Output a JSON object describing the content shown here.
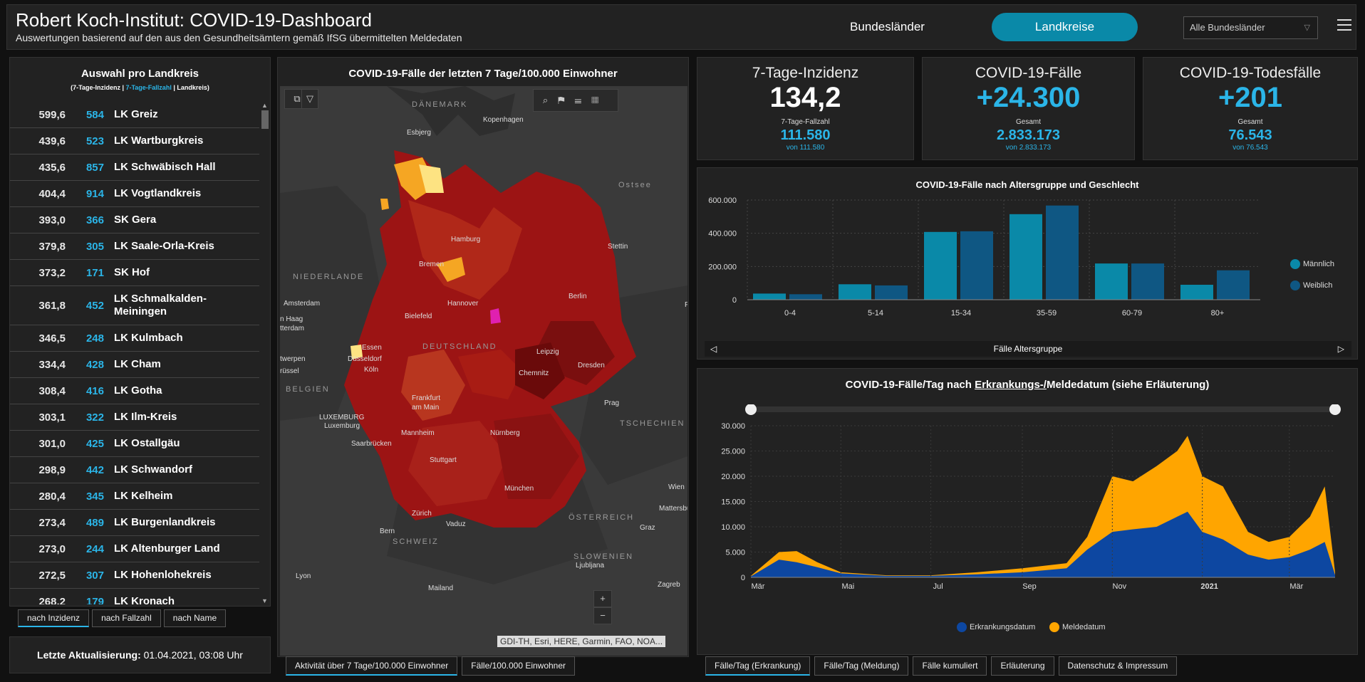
{
  "header": {
    "title": "Robert Koch-Institut: COVID-19-Dashboard",
    "subtitle": "Auswertungen basierend auf den aus den Gesundheitsämtern gemäß IfSG übermittelten Meldedaten",
    "tab_states": "Bundesländer",
    "tab_districts": "Landkreise",
    "region_select": "Alle Bundesländer"
  },
  "list": {
    "title": "Auswahl pro Landkreis",
    "sub_a": "(7-Tage-Inzidenz | ",
    "sub_b": "7-Tage-Fallzahl",
    "sub_c": " | Landkreis)",
    "rows": [
      {
        "inc": "599,6",
        "cnt": "584",
        "name": "LK Greiz"
      },
      {
        "inc": "439,6",
        "cnt": "523",
        "name": "LK Wartburgkreis"
      },
      {
        "inc": "435,6",
        "cnt": "857",
        "name": "LK Schwäbisch Hall"
      },
      {
        "inc": "404,4",
        "cnt": "914",
        "name": "LK Vogtlandkreis"
      },
      {
        "inc": "393,0",
        "cnt": "366",
        "name": "SK Gera"
      },
      {
        "inc": "379,8",
        "cnt": "305",
        "name": "LK Saale-Orla-Kreis"
      },
      {
        "inc": "373,2",
        "cnt": "171",
        "name": "SK Hof"
      },
      {
        "inc": "361,8",
        "cnt": "452",
        "name": "LK Schmalkalden-Meiningen"
      },
      {
        "inc": "346,5",
        "cnt": "248",
        "name": "LK Kulmbach"
      },
      {
        "inc": "334,4",
        "cnt": "428",
        "name": "LK Cham"
      },
      {
        "inc": "308,4",
        "cnt": "416",
        "name": "LK Gotha"
      },
      {
        "inc": "303,1",
        "cnt": "322",
        "name": "LK Ilm-Kreis"
      },
      {
        "inc": "301,0",
        "cnt": "425",
        "name": "LK Ostallgäu"
      },
      {
        "inc": "298,9",
        "cnt": "442",
        "name": "LK Schwandorf"
      },
      {
        "inc": "280,4",
        "cnt": "345",
        "name": "LK Kelheim"
      },
      {
        "inc": "273,4",
        "cnt": "489",
        "name": "LK Burgenlandkreis"
      },
      {
        "inc": "273,0",
        "cnt": "244",
        "name": "LK Altenburger Land"
      },
      {
        "inc": "272,5",
        "cnt": "307",
        "name": "LK Hohenlohekreis"
      },
      {
        "inc": "268,2",
        "cnt": "179",
        "name": "LK Kronach"
      }
    ],
    "sort_tabs": [
      "nach Inzidenz",
      "nach Fallzahl",
      "nach Name"
    ],
    "update_label": "Letzte Aktualisierung:",
    "update_value": "01.04.2021, 03:08 Uhr"
  },
  "map": {
    "title": "COVID-19-Fälle der letzten 7 Tage/100.000 Einwohner",
    "attribution": "GDI-TH, Esri, HERE, Garmin, FAO, NOA...",
    "zoom_in": "+",
    "zoom_out": "−",
    "labels": {
      "daenemark": "DÄNEMARK",
      "kopenhagen": "Kopenhagen",
      "esbjerg": "Esbjerg",
      "ostsee": "Ostsee",
      "hamburg": "Hamburg",
      "stettin": "Stettin",
      "bremen": "Bremen",
      "niederlande": "NIEDERLANDE",
      "amsterdam": "Amsterdam",
      "den_haag": "n Haag",
      "rotterdam": "tterdam",
      "hannover": "Hannover",
      "berlin": "Berlin",
      "bielefeld": "Bielefeld",
      "deutschland": "DEUTSCHLAND",
      "essen": "Essen",
      "duesseldorf": "Düsseldorf",
      "leipzig": "Leipzig",
      "antwerpen": "twerpen",
      "dresden": "Dresden",
      "koeln": "Köln",
      "bruessel": "rüssel",
      "chemnitz": "Chemnitz",
      "belgien": "BELGIEN",
      "frankfurt": "Frankfurt",
      "am_main": "am Main",
      "prag": "Prag",
      "luxemburg_c": "LUXEMBURG",
      "luxemburg": "Luxemburg",
      "tschechien": "TSCHECHIEN",
      "mannheim": "Mannheim",
      "nuernberg": "Nürnberg",
      "saarbruecken": "Saarbrücken",
      "stuttgart": "Stuttgart",
      "wien": "Wien",
      "muenchen": "München",
      "mattersburg": "Mattersbu",
      "oesterreich": "ÖSTERREICH",
      "zuerich": "Zürich",
      "vaduz": "Vaduz",
      "graz": "Graz",
      "bern": "Bern",
      "schweiz": "SCHWEIZ",
      "slowenien": "SLOWENIEN",
      "ljubljana": "Ljubljana",
      "lyon": "Lyon",
      "mailand": "Mailand",
      "zagreb": "Zagreb",
      "p": "P"
    },
    "tabs": [
      "Aktivität über 7 Tage/100.000 Einwohner",
      "Fälle/100.000 Einwohner"
    ]
  },
  "kpis": [
    {
      "label": "7-Tage-Inzidenz",
      "value": "134,2",
      "sub_label": "7-Tage-Fallzahl",
      "sub_value": "111.580",
      "sub_note": "von 111.580"
    },
    {
      "label": "COVID-19-Fälle",
      "value": "+24.300",
      "sub_label": "Gesamt",
      "sub_value": "2.833.173",
      "sub_note": "von 2.833.173"
    },
    {
      "label": "COVID-19-Todesfälle",
      "value": "+201",
      "sub_label": "Gesamt",
      "sub_value": "76.543",
      "sub_note": "von 76.543"
    }
  ],
  "age_chart": {
    "title": "COVID-19-Fälle nach Altersgruppe und Geschlecht",
    "xlabel": "Fälle Altersgruppe",
    "legend": [
      "Männlich",
      "Weiblich"
    ]
  },
  "daily_chart": {
    "title_a": "COVID-19-Fälle/Tag nach ",
    "title_b": "Erkrankungs-/",
    "title_c": "Meldedatum (siehe Erläuterung)",
    "legend": [
      "Erkrankungsdatum",
      "Meldedatum"
    ]
  },
  "bottom_tabs": [
    "Fälle/Tag (Erkrankung)",
    "Fälle/Tag (Meldung)",
    "Fälle kumuliert",
    "Erläuterung",
    "Datenschutz & Impressum"
  ],
  "colors": {
    "accent": "#0a89a8",
    "cyan": "#2bb5e8",
    "male": "#0a89a8",
    "female": "#0f5783",
    "erkrankung": "#0d47a1",
    "meldung": "#ffa500"
  },
  "chart_data": [
    {
      "type": "bar",
      "title": "COVID-19-Fälle nach Altersgruppe und Geschlecht",
      "xlabel": "Fälle Altersgruppe",
      "ylabel": "",
      "categories": [
        "0-4",
        "5-14",
        "15-34",
        "35-59",
        "60-79",
        "80+"
      ],
      "series": [
        {
          "name": "Männlich",
          "values": [
            37000,
            93000,
            408000,
            515000,
            218000,
            90000
          ]
        },
        {
          "name": "Weiblich",
          "values": [
            33000,
            86000,
            412000,
            567000,
            218000,
            177000
          ]
        }
      ],
      "ylim": [
        0,
        600000
      ],
      "yticks": [
        "0",
        "200.000",
        "400.000",
        "600.000"
      ],
      "legend_position": "right"
    },
    {
      "type": "area",
      "title": "COVID-19-Fälle/Tag nach Erkrankungs-/Meldedatum (siehe Erläuterung)",
      "x": [
        "2020-03-01",
        "2020-03-20",
        "2020-04-01",
        "2020-04-15",
        "2020-05-01",
        "2020-06-01",
        "2020-07-01",
        "2020-08-01",
        "2020-09-01",
        "2020-10-01",
        "2020-10-15",
        "2020-11-01",
        "2020-11-15",
        "2020-12-01",
        "2020-12-15",
        "2020-12-22",
        "2021-01-01",
        "2021-01-15",
        "2021-02-01",
        "2021-02-15",
        "2021-03-01",
        "2021-03-15",
        "2021-03-25",
        "2021-04-01"
      ],
      "series": [
        {
          "name": "Erkrankungsdatum",
          "values": [
            200,
            3500,
            3000,
            2000,
            800,
            300,
            300,
            600,
            1000,
            1800,
            5500,
            9000,
            9500,
            10000,
            12000,
            13000,
            9000,
            7500,
            4500,
            3500,
            4000,
            5500,
            7000,
            500
          ]
        },
        {
          "name": "Meldedatum",
          "values": [
            300,
            5000,
            5200,
            3000,
            1000,
            400,
            400,
            1000,
            1800,
            2800,
            8000,
            20000,
            19000,
            22000,
            25000,
            28000,
            20000,
            18000,
            9000,
            7000,
            8000,
            12000,
            18000,
            1000
          ]
        }
      ],
      "ylim": [
        0,
        30000
      ],
      "yticks": [
        "0",
        "5.000",
        "10.000",
        "15.000",
        "20.000",
        "25.000",
        "30.000"
      ],
      "xticks": [
        "Mär",
        "Mai",
        "Jul",
        "Sep",
        "Nov",
        "2021",
        "Mär"
      ],
      "legend_position": "bottom"
    }
  ]
}
